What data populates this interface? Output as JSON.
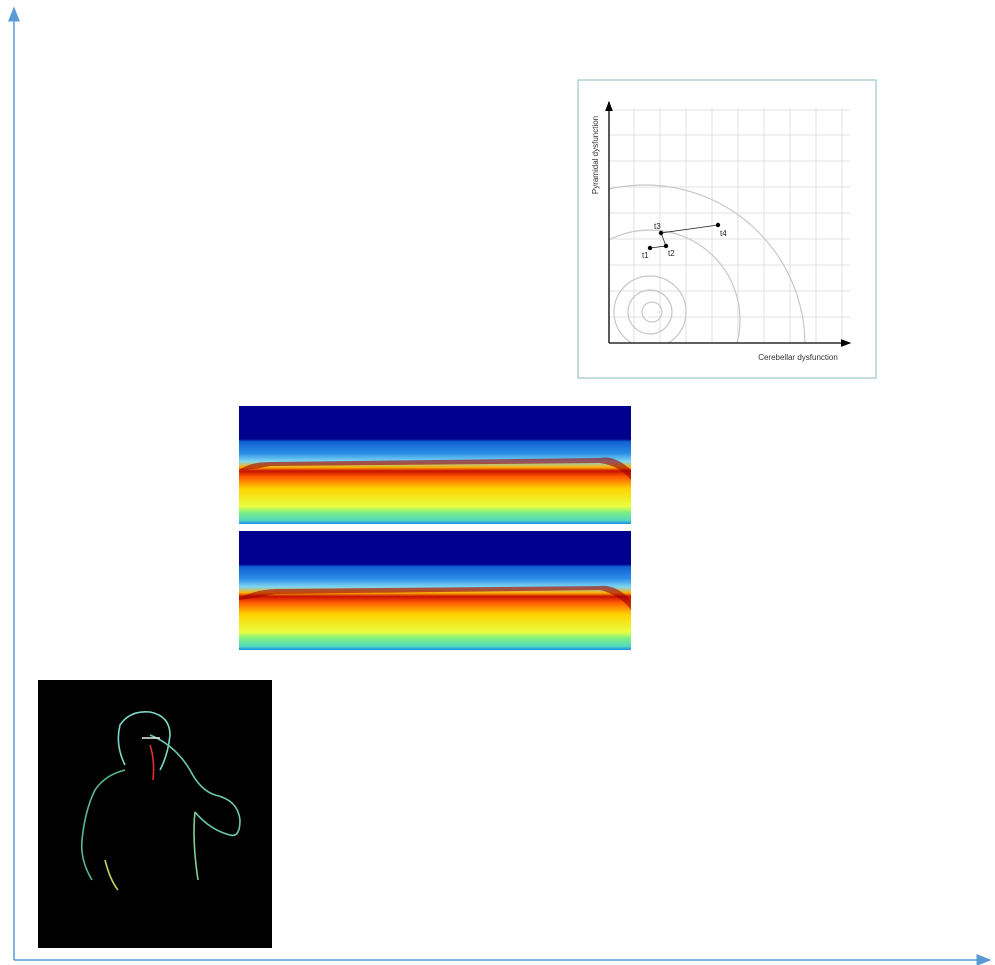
{
  "inset": {
    "y_axis_label": "Pyramidal dysfunction",
    "x_axis_label": "Cerebellar dysfunction",
    "points": [
      {
        "label": "t1"
      },
      {
        "label": "t2"
      },
      {
        "label": "t3"
      },
      {
        "label": "t4"
      }
    ]
  }
}
